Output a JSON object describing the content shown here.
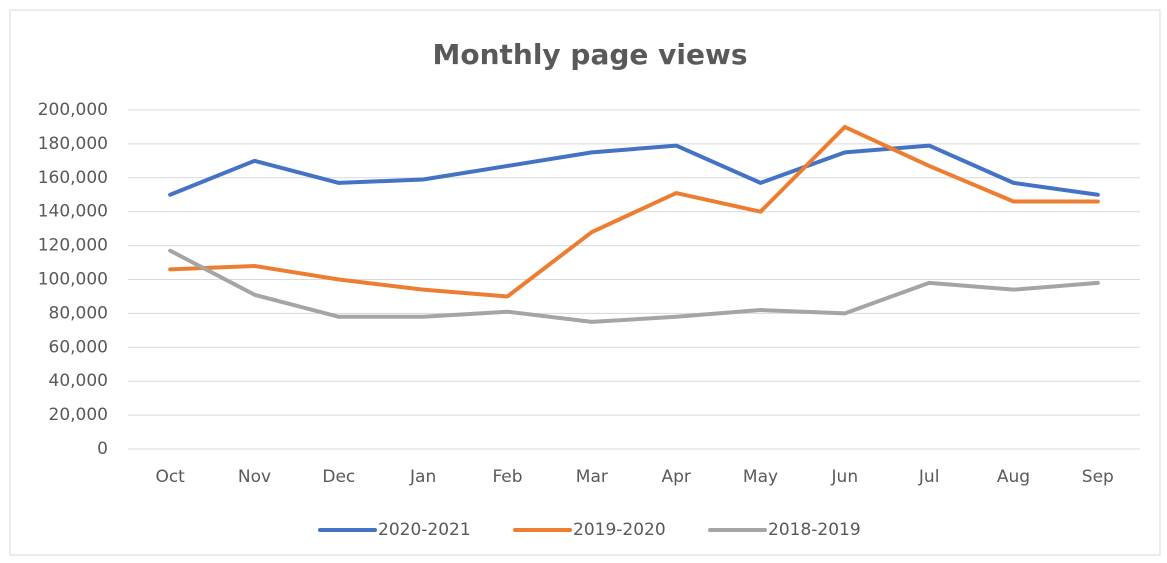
{
  "chart_data": {
    "type": "line",
    "title": "Monthly page views",
    "categories": [
      "Oct",
      "Nov",
      "Dec",
      "Jan",
      "Feb",
      "Mar",
      "Apr",
      "May",
      "Jun",
      "Jul",
      "Aug",
      "Sep"
    ],
    "series": [
      {
        "name": "2020-2021",
        "color": "#4472c4",
        "values": [
          150000,
          170000,
          157000,
          159000,
          167000,
          175000,
          179000,
          157000,
          175000,
          179000,
          157000,
          150000
        ]
      },
      {
        "name": "2019-2020",
        "color": "#ed7d31",
        "values": [
          106000,
          108000,
          100000,
          94000,
          90000,
          128000,
          151000,
          140000,
          190000,
          167000,
          146000,
          146000
        ]
      },
      {
        "name": "2018-2019",
        "color": "#a5a5a5",
        "values": [
          117000,
          91000,
          78000,
          78000,
          81000,
          75000,
          78000,
          82000,
          80000,
          98000,
          94000,
          98000
        ]
      }
    ],
    "ylim": [
      0,
      200000
    ],
    "yticks": [
      0,
      {
        "value": 20000,
        "label": "20,000"
      },
      {
        "value": 40000,
        "label": "40,000"
      },
      {
        "value": 60000,
        "label": "60,000"
      },
      {
        "value": 80000,
        "label": "80,000"
      },
      {
        "value": 100000,
        "label": "100,000"
      },
      {
        "value": 120000,
        "label": "120,000"
      },
      {
        "value": 140000,
        "label": "140,000"
      },
      {
        "value": 160000,
        "label": "160,000"
      },
      {
        "value": 180000,
        "label": "180,000"
      },
      {
        "value": 200000,
        "label": "200,000"
      }
    ],
    "grid": true,
    "legend": "bottom"
  }
}
